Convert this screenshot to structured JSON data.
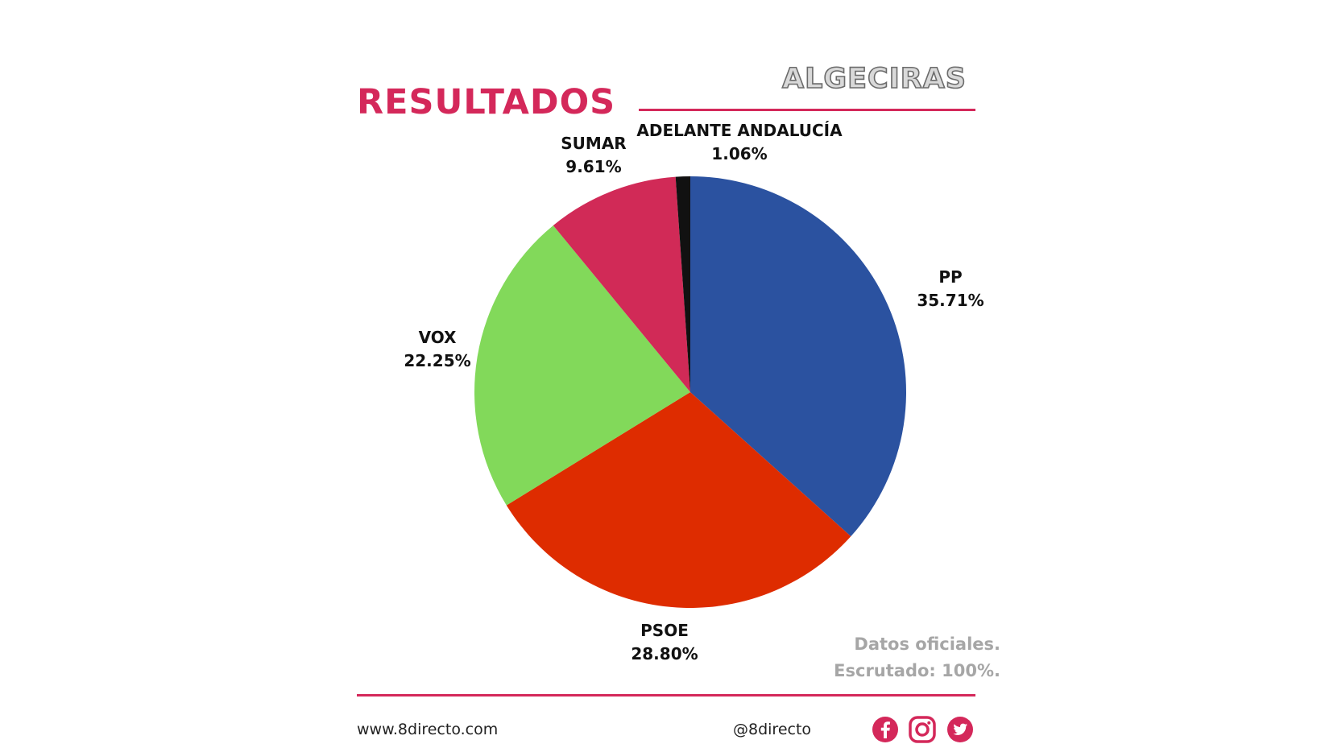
{
  "header": {
    "title": "RESULTADOS",
    "city": "ALGECIRAS"
  },
  "chart_data": {
    "type": "pie",
    "categories": [
      "PP",
      "PSOE",
      "VOX",
      "SUMAR",
      "ADELANTE ANDALUCÍA"
    ],
    "values": [
      35.71,
      28.8,
      22.25,
      9.61,
      1.06
    ],
    "value_labels": [
      "35.71%",
      "28.80%",
      "22.25%",
      "9.61%",
      "1.06%"
    ],
    "colors": [
      "#2b52a0",
      "#de2c00",
      "#82d95a",
      "#d12a57",
      "#111111"
    ],
    "start_angle": "12 o'clock",
    "direction": "clockwise",
    "legend": "none"
  },
  "source": {
    "line1": "Datos oficiales.",
    "line2": "Escrutado: 100%."
  },
  "footer": {
    "website": "www.8directo.com",
    "handle": "@8directo",
    "social_icons": [
      "facebook-icon",
      "instagram-icon",
      "twitter-icon"
    ],
    "social_color": "#d4285a"
  }
}
